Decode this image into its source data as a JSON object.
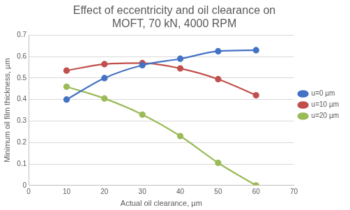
{
  "chart_data": {
    "type": "line",
    "title": [
      "Effect of eccentricity and oil clearance on",
      "MOFT, 70 kN, 4000 RPM"
    ],
    "x_label": "Actual oil clearance, µm",
    "y_label": "Minimum oil film thickness, µm",
    "x": [
      10,
      20,
      30,
      40,
      50,
      60
    ],
    "series": [
      {
        "name": "u=0 µm",
        "color": "#4472c4",
        "values": [
          0.4,
          0.5,
          0.56,
          0.59,
          0.625,
          0.63
        ]
      },
      {
        "name": "u=10 µm",
        "color": "#c0504d",
        "values": [
          0.535,
          0.565,
          0.57,
          0.545,
          0.495,
          0.42
        ]
      },
      {
        "name": "u=20 µm",
        "color": "#9bbb59",
        "values": [
          0.46,
          0.405,
          0.33,
          0.23,
          0.105,
          0.0
        ]
      }
    ],
    "xlim": [
      0,
      70
    ],
    "xticks": [
      0,
      10,
      20,
      30,
      40,
      50,
      60,
      70
    ],
    "ylim": [
      0,
      0.7
    ],
    "yticks": [
      0,
      0.1,
      0.2,
      0.3,
      0.4,
      0.5,
      0.6,
      0.7
    ],
    "grid": "y",
    "legend": "right",
    "marker": "circle",
    "line_style": "smooth"
  }
}
